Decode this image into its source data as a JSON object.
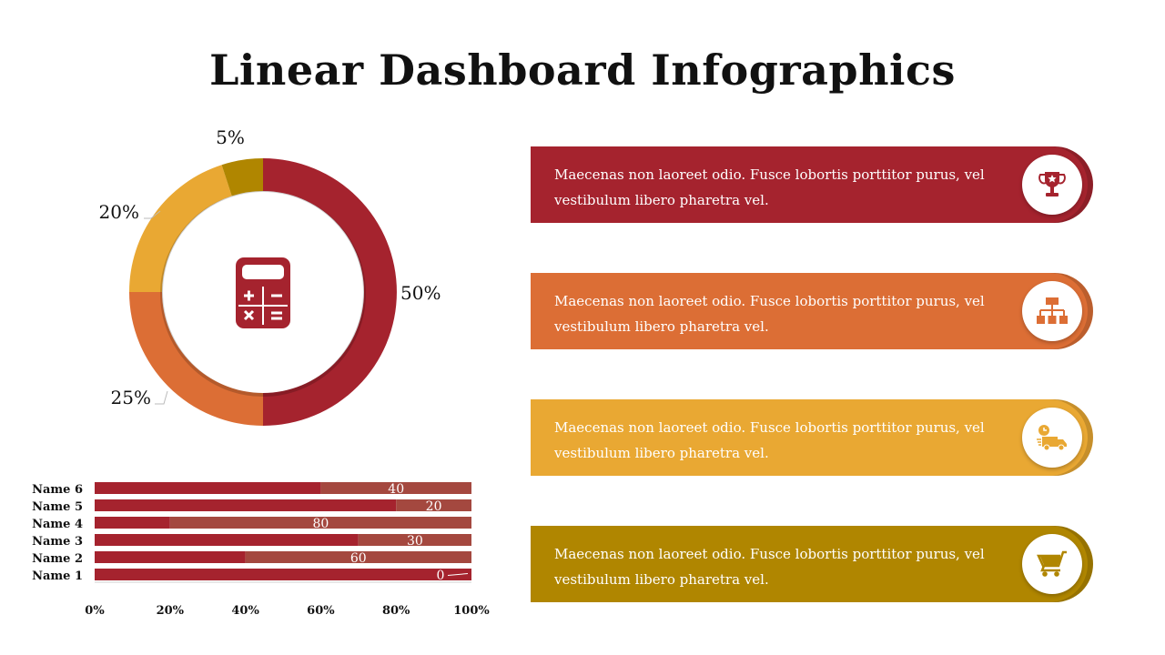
{
  "title": "Linear Dashboard Infographics",
  "colors": {
    "dark_red": "#A5232E",
    "orange": "#DC6E35",
    "yellow": "#E9A833",
    "olive": "#B08600",
    "bar_light": "#A4483F"
  },
  "chart_data": [
    {
      "type": "pie",
      "variant": "donut",
      "slices": [
        {
          "label": "50%",
          "value": 50,
          "color": "#A5232E"
        },
        {
          "label": "25%",
          "value": 25,
          "color": "#DC6E35"
        },
        {
          "label": "20%",
          "value": 20,
          "color": "#E9A833"
        },
        {
          "label": "5%",
          "value": 5,
          "color": "#B08600"
        }
      ],
      "center_icon": "calculator-icon"
    },
    {
      "type": "bar",
      "orientation": "horizontal",
      "stacked": true,
      "categories": [
        "Name 1",
        "Name 2",
        "Name 3",
        "Name 4",
        "Name 5",
        "Name 6"
      ],
      "series": [
        {
          "values": [
            100,
            40,
            70,
            20,
            80,
            60
          ],
          "color": "#A5232E"
        },
        {
          "values": [
            0,
            60,
            30,
            80,
            20,
            40
          ],
          "color": "#A4483F",
          "data_labels": [
            "0",
            "60",
            "30",
            "80",
            "20",
            "40"
          ]
        }
      ],
      "xticks": [
        "0%",
        "20%",
        "40%",
        "60%",
        "80%",
        "100%"
      ],
      "xlim": [
        0,
        100
      ]
    }
  ],
  "cards": [
    {
      "text": "Maecenas non laoreet odio. Fusce lobortis porttitor purus, vel vestibulum libero pharetra vel.",
      "color": "#A5232E",
      "icon": "trophy-icon"
    },
    {
      "text": "Maecenas non laoreet odio. Fusce lobortis porttitor purus, vel vestibulum libero pharetra vel.",
      "color": "#DC6E35",
      "icon": "hierarchy-icon"
    },
    {
      "text": "Maecenas non laoreet odio. Fusce lobortis porttitor purus, vel vestibulum libero pharetra vel.",
      "color": "#E9A833",
      "icon": "delivery-truck-icon"
    },
    {
      "text": "Maecenas non laoreet odio. Fusce lobortis porttitor purus, vel vestibulum libero pharetra vel.",
      "color": "#B08600",
      "icon": "shopping-cart-icon"
    }
  ]
}
